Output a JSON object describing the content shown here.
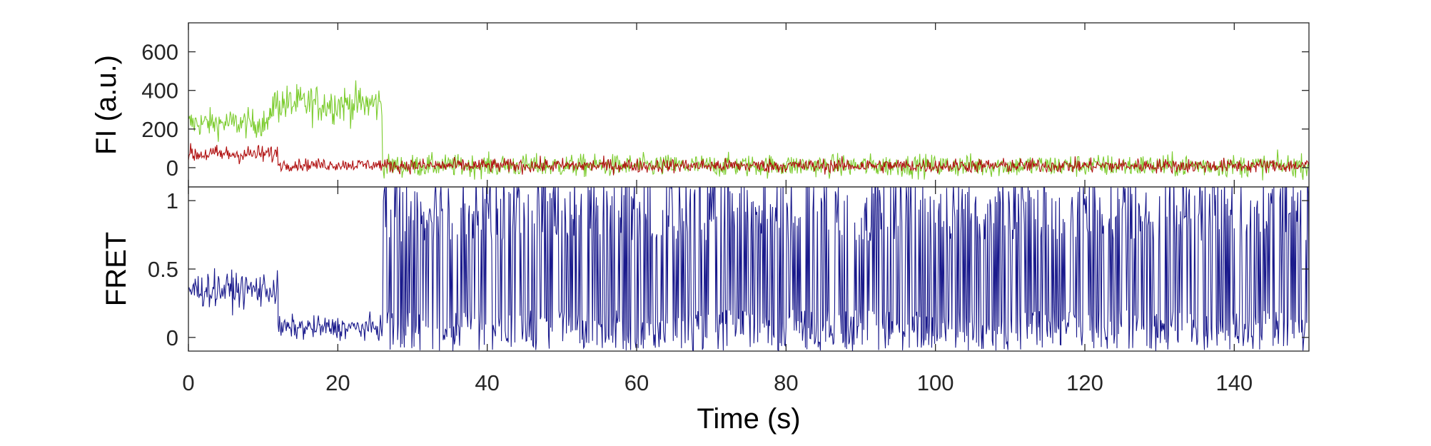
{
  "chart_data": [
    {
      "type": "line",
      "panel": "top",
      "title": "",
      "xlabel": "",
      "ylabel": "FI (a.u.)",
      "xlim": [
        0,
        150
      ],
      "ylim": [
        -100,
        750
      ],
      "yticks": [
        0,
        200,
        400,
        600
      ],
      "ytick_labels": [
        "0",
        "200",
        "400",
        "600"
      ],
      "legend": "none",
      "grid": false,
      "series": [
        {
          "color": "#7ccc2e",
          "description": "donor",
          "segments": [
            {
              "x0": 0,
              "x1": 11,
              "mean": 230,
              "noise": 70
            },
            {
              "x0": 11,
              "x1": 26,
              "mean": 330,
              "noise": 95
            },
            {
              "x0": 26,
              "x1": 150,
              "mean": 10,
              "noise": 55
            }
          ]
        },
        {
          "color": "#b01010",
          "description": "acceptor",
          "segments": [
            {
              "x0": 0,
              "x1": 12,
              "mean": 70,
              "noise": 45
            },
            {
              "x0": 12,
              "x1": 26,
              "mean": 15,
              "noise": 30
            },
            {
              "x0": 26,
              "x1": 150,
              "mean": 10,
              "noise": 35
            }
          ]
        }
      ]
    },
    {
      "type": "line",
      "panel": "bottom",
      "title": "",
      "xlabel": "Time (s)",
      "ylabel": "FRET",
      "xlim": [
        0,
        150
      ],
      "ylim": [
        -0.1,
        1.1
      ],
      "xticks": [
        0,
        20,
        40,
        60,
        80,
        100,
        120,
        140
      ],
      "xtick_labels": [
        "0",
        "20",
        "40",
        "60",
        "80",
        "100",
        "120",
        "140"
      ],
      "yticks": [
        0,
        0.5,
        1
      ],
      "ytick_labels": [
        "0",
        "0.5",
        "1"
      ],
      "legend": "none",
      "grid": false,
      "series": [
        {
          "color": "#1a1a8c",
          "description": "fret efficiency",
          "segments": [
            {
              "x0": 0,
              "x1": 12,
              "mean": 0.35,
              "noise": 0.12
            },
            {
              "x0": 12,
              "x1": 26,
              "mean": 0.07,
              "noise": 0.08
            },
            {
              "x0": 26,
              "x1": 150,
              "mean": 0.5,
              "noise": 0.9
            }
          ]
        }
      ]
    }
  ]
}
